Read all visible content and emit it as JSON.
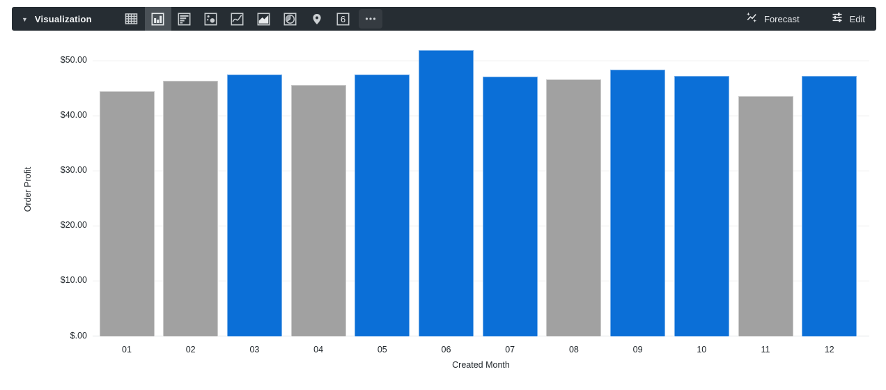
{
  "toolbar": {
    "title": "Visualization",
    "forecast_label": "Forecast",
    "edit_label": "Edit",
    "bg_color": "#262d33",
    "selected_bg_color": "#4a5157",
    "icon_color": "#ccd0d3",
    "chart_type_icons": [
      {
        "name": "table-icon",
        "selected": false
      },
      {
        "name": "column-chart-icon",
        "selected": true
      },
      {
        "name": "bar-chart-icon",
        "selected": false
      },
      {
        "name": "scatter-chart-icon",
        "selected": false
      },
      {
        "name": "line-chart-icon",
        "selected": false
      },
      {
        "name": "area-chart-icon",
        "selected": false
      },
      {
        "name": "pie-chart-icon",
        "selected": false
      },
      {
        "name": "map-pin-icon",
        "selected": false
      },
      {
        "name": "single-value-icon",
        "selected": false,
        "glyph": "6"
      },
      {
        "name": "more-options-icon",
        "selected": false
      }
    ]
  },
  "chart_data": {
    "type": "bar",
    "title": "",
    "xlabel": "Created Month",
    "ylabel": "Order Profit",
    "categories": [
      "01",
      "02",
      "03",
      "04",
      "05",
      "06",
      "07",
      "08",
      "09",
      "10",
      "11",
      "12"
    ],
    "values": [
      44.5,
      46.4,
      47.5,
      45.6,
      47.5,
      52.0,
      47.2,
      46.7,
      48.5,
      47.3,
      43.6,
      47.3
    ],
    "bar_colors": [
      "gray",
      "gray",
      "blue",
      "gray",
      "blue",
      "blue",
      "blue",
      "gray",
      "blue",
      "blue",
      "gray",
      "blue"
    ],
    "palette": {
      "blue": "#0b6fd7",
      "gray": "#a1a1a1"
    },
    "y_ticks": [
      {
        "value": 50,
        "label": "$50.00"
      },
      {
        "value": 40,
        "label": "$40.00"
      },
      {
        "value": 30,
        "label": "$30.00"
      },
      {
        "value": 20,
        "label": "$20.00"
      },
      {
        "value": 10,
        "label": "$10.00"
      },
      {
        "value": 0,
        "label": "$.00"
      }
    ],
    "ylim": [
      0,
      53.5
    ],
    "grid": true,
    "legend": "none"
  }
}
